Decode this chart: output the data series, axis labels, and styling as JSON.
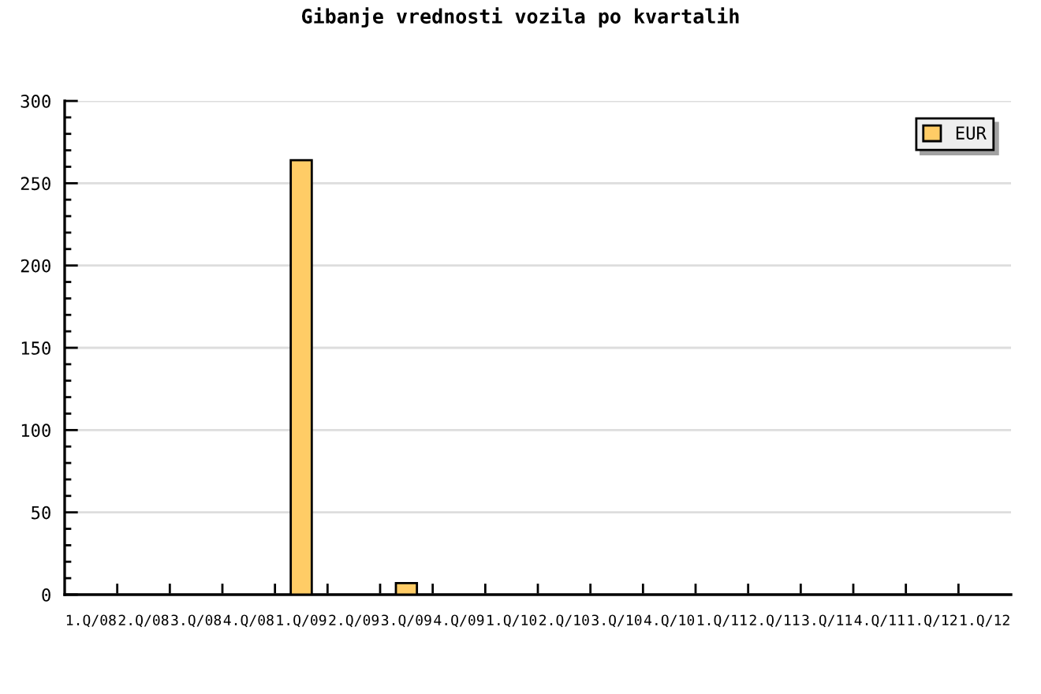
{
  "chart_data": {
    "type": "bar",
    "title": "Gibanje vrednosti vozila po kvartalih",
    "categories": [
      "1.Q/08",
      "2.Q/08",
      "3.Q/08",
      "4.Q/08",
      "1.Q/09",
      "2.Q/09",
      "3.Q/09",
      "4.Q/09",
      "1.Q/10",
      "2.Q/10",
      "3.Q/10",
      "4.Q/10",
      "1.Q/11",
      "2.Q/11",
      "3.Q/11",
      "4.Q/11",
      "1.Q/12",
      "1.Q/12"
    ],
    "series": [
      {
        "name": "EUR",
        "color": "#ffcc66",
        "values": [
          null,
          null,
          null,
          null,
          264,
          null,
          7,
          null,
          null,
          null,
          null,
          null,
          null,
          null,
          null,
          null,
          null,
          null
        ]
      }
    ],
    "ylim": [
      0,
      300
    ],
    "yticks": [
      0,
      {
        "value": 10,
        "label": null
      },
      {
        "value": 20,
        "label": null
      },
      {
        "value": 30,
        "label": null
      },
      {
        "value": 40,
        "label": null
      },
      50,
      {
        "value": 60,
        "label": null
      },
      {
        "value": 70,
        "label": null
      },
      {
        "value": 80,
        "label": null
      },
      {
        "value": 90,
        "label": null
      },
      100,
      {
        "value": 110,
        "label": null
      },
      {
        "value": 120,
        "label": null
      },
      {
        "value": 130,
        "label": null
      },
      {
        "value": 140,
        "label": null
      },
      150,
      {
        "value": 160,
        "label": null
      },
      {
        "value": 170,
        "label": null
      },
      {
        "value": 180,
        "label": null
      },
      {
        "value": 190,
        "label": null
      },
      200,
      {
        "value": 210,
        "label": null
      },
      {
        "value": 220,
        "label": null
      },
      {
        "value": 230,
        "label": null
      },
      {
        "value": 240,
        "label": null
      },
      250,
      {
        "value": 260,
        "label": null
      },
      {
        "value": 270,
        "label": null
      },
      {
        "value": 280,
        "label": null
      },
      {
        "value": 290,
        "label": null
      },
      300
    ],
    "grid": "y",
    "legend": "top right"
  }
}
